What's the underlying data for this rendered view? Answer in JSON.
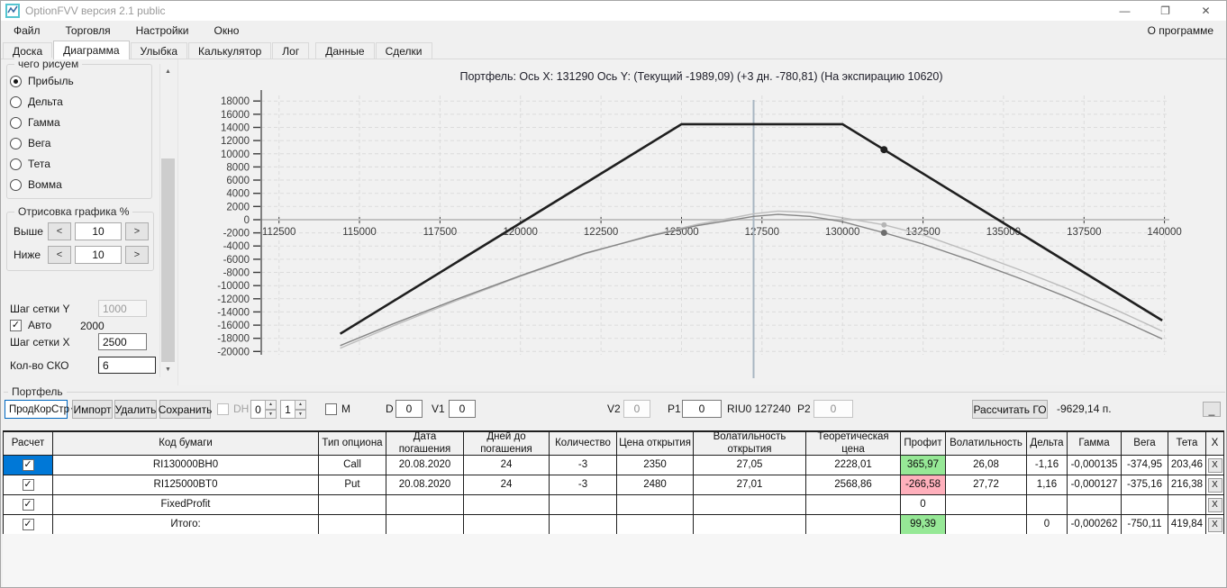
{
  "window": {
    "title": "OptionFVV версия 2.1 public",
    "minimize": "—",
    "restore": "❐",
    "close": "✕"
  },
  "menu": {
    "items": [
      "Файл",
      "Торговля",
      "Настройки",
      "Окно"
    ],
    "right": "О программе"
  },
  "tabs": {
    "items": [
      "Доска",
      "Диаграмма",
      "Улыбка",
      "Калькулятор",
      "Лог",
      "Данные",
      "Сделки"
    ],
    "active": "Диаграмма"
  },
  "sidebar": {
    "draw_group": {
      "label": "чего рисуем",
      "options": [
        "Прибыль",
        "Дельта",
        "Гамма",
        "Вега",
        "Тета",
        "Вомма"
      ],
      "selected": "Прибыль"
    },
    "render_group": {
      "label": "Отрисовка графика %",
      "above_label": "Выше",
      "above_value": "10",
      "below_label": "Ниже",
      "below_value": "10",
      "dec": "<",
      "inc": ">"
    },
    "grid_y_label": "Шаг сетки Y",
    "grid_y_value": "1000",
    "auto_label": "Авто",
    "auto_value": "2000",
    "grid_x_label": "Шаг сетки X",
    "grid_x_value": "2500",
    "sko_label": "Кол-во СКО",
    "sko_value": "6"
  },
  "chart_data": {
    "type": "line",
    "title": "Портфель: Ось X: 131290 Ось Y:  (Текущий -1989,09)  (+3 дн. -780,81)  (На экспирацию 10620)",
    "xlim": [
      111950,
      140150
    ],
    "ylim": [
      -20500,
      18850
    ],
    "x_ticks": [
      112500,
      115000,
      117500,
      120000,
      122500,
      125000,
      127500,
      130000,
      132500,
      135000,
      137500,
      140000
    ],
    "y_ticks": [
      18000,
      16000,
      14000,
      12000,
      10000,
      8000,
      6000,
      4000,
      2000,
      0,
      -2000,
      -4000,
      -6000,
      -8000,
      -10000,
      -12000,
      -14000,
      -16000,
      -18000,
      -20000
    ],
    "grid": true,
    "legend": "none",
    "vline_x": 127240,
    "colors": {
      "vline": "#a9b6c2",
      "grid": "#dcdcdc",
      "axis": "#5a5a5a",
      "zero": "#c2c2c2"
    },
    "series": [
      {
        "name": "+3 дн.",
        "color": "#bdbdbd",
        "width": 1.4,
        "points": [
          [
            114400,
            -19500
          ],
          [
            116000,
            -16200
          ],
          [
            118000,
            -12300
          ],
          [
            120000,
            -8600
          ],
          [
            122000,
            -5200
          ],
          [
            124000,
            -2400
          ],
          [
            125500,
            -700
          ],
          [
            126500,
            200
          ],
          [
            127240,
            900
          ],
          [
            128000,
            1300
          ],
          [
            129000,
            1100
          ],
          [
            130000,
            300
          ],
          [
            131290,
            -781
          ],
          [
            132500,
            -2300
          ],
          [
            134000,
            -4900
          ],
          [
            135500,
            -7600
          ],
          [
            137000,
            -10500
          ],
          [
            138500,
            -13700
          ],
          [
            139930,
            -16900
          ]
        ]
      },
      {
        "name": "Текущий",
        "color": "#858585",
        "width": 1.4,
        "points": [
          [
            114400,
            -19100
          ],
          [
            116000,
            -15900
          ],
          [
            118000,
            -12100
          ],
          [
            120000,
            -8500
          ],
          [
            122000,
            -5100
          ],
          [
            124000,
            -2500
          ],
          [
            125500,
            -900
          ],
          [
            126500,
            -100
          ],
          [
            127240,
            500
          ],
          [
            128000,
            800
          ],
          [
            129000,
            500
          ],
          [
            130000,
            -300
          ],
          [
            131290,
            -1989
          ],
          [
            132500,
            -3700
          ],
          [
            134000,
            -6200
          ],
          [
            135500,
            -8900
          ],
          [
            137000,
            -11800
          ],
          [
            138500,
            -14900
          ],
          [
            139930,
            -18100
          ]
        ]
      },
      {
        "name": "На экспирацию",
        "color": "#1f1f1f",
        "width": 2.6,
        "points": [
          [
            114400,
            -17310
          ],
          [
            125000,
            14490
          ],
          [
            130000,
            14490
          ],
          [
            139930,
            -15300
          ]
        ]
      }
    ],
    "markers": [
      {
        "x": 131290,
        "y": 10620,
        "color": "#1f1f1f",
        "r": 4
      },
      {
        "x": 131290,
        "y": -781,
        "color": "#b5b5b5",
        "r": 3
      },
      {
        "x": 131290,
        "y": -1989,
        "color": "#6e6e6e",
        "r": 3.5
      }
    ]
  },
  "portfolio": {
    "group_label": "Портфель",
    "combo_value": "ПродКорСтр",
    "import_btn": "Импорт",
    "delete_btn": "Удалить",
    "save_btn": "Сохранить",
    "dh_label": "DH",
    "spin1_value": "0",
    "spin2_value": "1",
    "m_label": "M",
    "d_label": "D",
    "d_value": "0",
    "v1_label": "V1",
    "v1_value": "0",
    "v2_label": "V2",
    "v2_value": "0",
    "p1_label": "P1",
    "p1_value": "0",
    "riu_label": "RIU0 127240",
    "p2_label": "P2",
    "p2_value": "0",
    "calc_btn": "Рассчитать ГО",
    "go_value": "-9629,14 п.",
    "min_btn": "_"
  },
  "table": {
    "headers": [
      "Расчет",
      "Код бумаги",
      "Тип опциона",
      "Дата погашения",
      "Дней до погашения",
      "Количество",
      "Цена открытия",
      "Волатильность открытия",
      "Теоретическая цена",
      "Профит",
      "Волатильность",
      "Дельта",
      "Гамма",
      "Вега",
      "Тета",
      "X"
    ],
    "x_button": "X",
    "rows": [
      {
        "checked": true,
        "selected": true,
        "profit": "pos",
        "cells": [
          "RI130000BH0",
          "Call",
          "20.08.2020",
          "24",
          "-3",
          "2350",
          "27,05",
          "2228,01",
          "365,97",
          "26,08",
          "-1,16",
          "-0,000135",
          "-374,95",
          "203,46"
        ]
      },
      {
        "checked": true,
        "selected": false,
        "profit": "neg",
        "cells": [
          "RI125000BT0",
          "Put",
          "20.08.2020",
          "24",
          "-3",
          "2480",
          "27,01",
          "2568,86",
          "-266,58",
          "27,72",
          "1,16",
          "-0,000127",
          "-375,16",
          "216,38"
        ]
      },
      {
        "checked": true,
        "selected": false,
        "profit": "none",
        "cells": [
          "FixedProfit",
          "",
          "",
          "",
          "",
          "",
          "",
          "",
          "0",
          "",
          "",
          "",
          "",
          ""
        ]
      },
      {
        "checked": true,
        "selected": false,
        "profit": "pos",
        "cells": [
          "Итого:",
          "",
          "",
          "",
          "",
          "",
          "",
          "",
          "99,39",
          "",
          "0",
          "-0,000262",
          "-750,11",
          "419,84"
        ]
      }
    ]
  },
  "colors": {
    "profit_green": "#96e896",
    "loss_pink": "#ffb0bc",
    "selection_blue": "#0078d7"
  }
}
